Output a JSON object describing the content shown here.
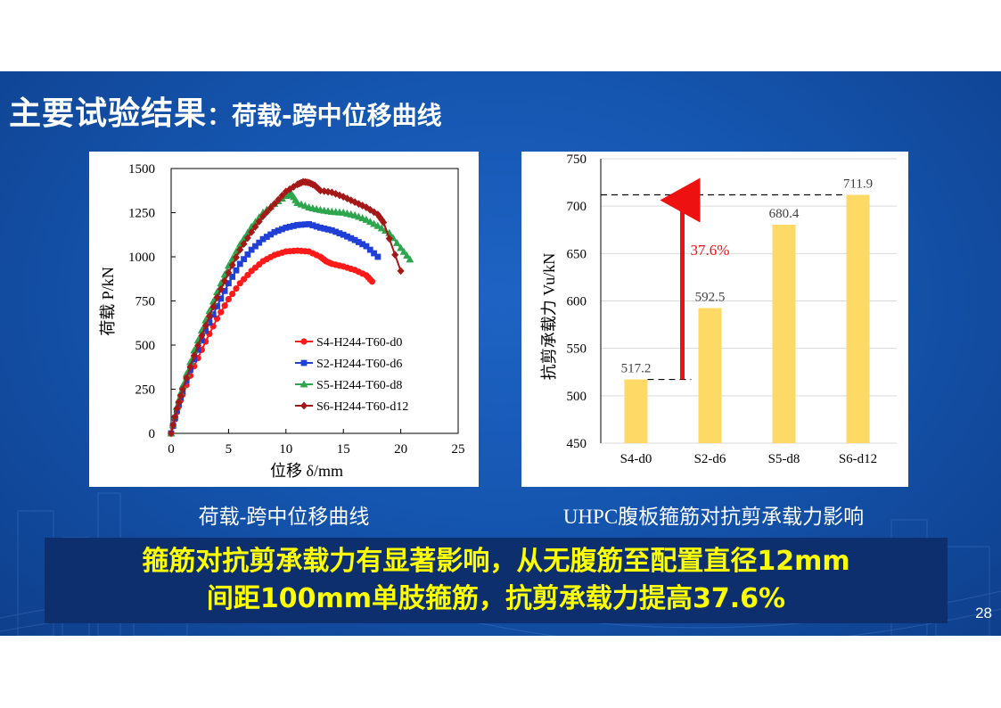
{
  "title": {
    "main": "主要试验结果",
    "sub": "：荷载-跨中位移曲线"
  },
  "left_caption": "荷载-跨中位移曲线",
  "right_caption": "UHPC腹板箍筋对抗剪承载力影响",
  "conclusion": {
    "line1": "箍筋对抗剪承载力有显著影响，从无腹筋至配置直径12mm",
    "line2": "间距100mm单肢箍筋，抗剪承载力提高37.6%"
  },
  "page_number": "28",
  "colors": {
    "red": "#ff1a1a",
    "blue": "#1f3fd6",
    "green": "#2ca54c",
    "darkred": "#a51818",
    "bar": "#ffd966",
    "arrow": "#ee1111"
  },
  "chart_data": [
    {
      "type": "line",
      "xlabel": "位移 δ/mm",
      "ylabel": "荷载 P/kN",
      "xlim": [
        0,
        25
      ],
      "ylim": [
        0,
        1500
      ],
      "xticks": [
        "0",
        "5",
        "10",
        "15",
        "20",
        "25"
      ],
      "yticks": [
        "0",
        "250",
        "500",
        "750",
        "1000",
        "1250",
        "1500"
      ],
      "legend_position": "bottom-right",
      "series": [
        {
          "name": "S4-H244-T60-d0",
          "color": "#ff1a1a",
          "marker": "circle",
          "x": [
            0,
            0.5,
            1,
            2,
            3,
            4,
            5,
            6,
            7,
            8,
            9,
            10,
            11,
            12,
            13,
            13.5,
            14,
            15,
            16,
            17,
            17.5
          ],
          "y": [
            0,
            120,
            220,
            380,
            520,
            650,
            760,
            850,
            920,
            975,
            1010,
            1030,
            1035,
            1030,
            1000,
            975,
            960,
            945,
            925,
            895,
            860
          ]
        },
        {
          "name": "S2-H244-T60-d6",
          "color": "#1f3fd6",
          "marker": "square",
          "x": [
            0,
            0.5,
            1,
            2,
            3,
            4,
            5,
            6,
            7,
            8,
            9,
            10,
            11,
            12,
            13,
            14,
            15,
            16,
            17,
            18
          ],
          "y": [
            0,
            130,
            240,
            420,
            580,
            720,
            850,
            960,
            1040,
            1100,
            1140,
            1165,
            1180,
            1185,
            1165,
            1150,
            1125,
            1095,
            1060,
            1000
          ]
        },
        {
          "name": "S5-H244-T60-d8",
          "color": "#2ca54c",
          "marker": "triangle",
          "x": [
            0,
            0.5,
            1,
            2,
            3,
            4,
            5,
            6,
            7,
            8,
            9,
            10,
            10.5,
            11,
            12,
            13,
            14,
            15,
            16,
            17,
            18,
            19,
            20,
            20.8
          ],
          "y": [
            0,
            150,
            270,
            470,
            640,
            800,
            950,
            1070,
            1170,
            1250,
            1300,
            1345,
            1355,
            1305,
            1280,
            1265,
            1255,
            1250,
            1235,
            1210,
            1175,
            1135,
            1050,
            985
          ]
        },
        {
          "name": "S6-H244-T60-d12",
          "color": "#a51818",
          "marker": "diamond",
          "x": [
            0,
            0.5,
            1,
            2,
            3,
            4,
            5,
            6,
            7,
            8,
            9,
            10,
            11,
            11.5,
            12,
            12.5,
            13,
            14,
            15,
            16,
            17,
            18,
            18.5,
            20
          ],
          "y": [
            0,
            140,
            250,
            440,
            610,
            770,
            910,
            1040,
            1140,
            1230,
            1300,
            1370,
            1410,
            1425,
            1420,
            1405,
            1375,
            1365,
            1340,
            1310,
            1280,
            1240,
            1195,
            920
          ]
        }
      ]
    },
    {
      "type": "bar",
      "ylabel": "抗剪承载力 Vu/kN",
      "ylim": [
        450,
        750
      ],
      "yticks": [
        "450",
        "500",
        "550",
        "600",
        "650",
        "700",
        "750"
      ],
      "categories": [
        "S4-d0",
        "S2-d6",
        "S5-d8",
        "S6-d12"
      ],
      "values": [
        517.2,
        592.5,
        680.4,
        711.9
      ],
      "data_labels": [
        "517.2",
        "592.5",
        "680.4",
        "711.9"
      ],
      "annotation": {
        "text": "37.6%",
        "from": 517.2,
        "to": 711.9
      }
    }
  ]
}
